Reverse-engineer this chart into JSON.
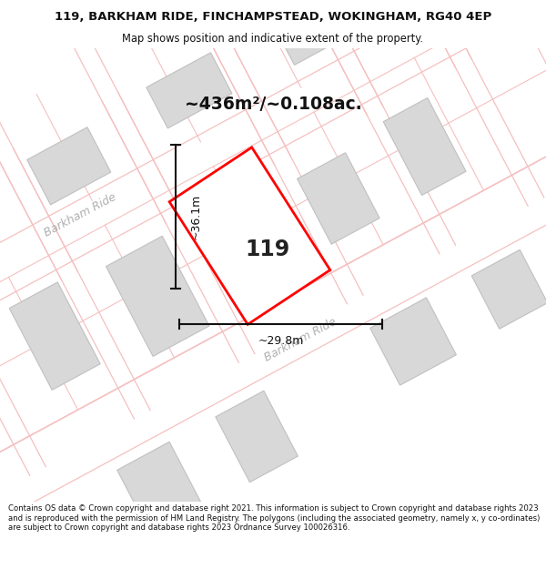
{
  "title_line1": "119, BARKHAM RIDE, FINCHAMPSTEAD, WOKINGHAM, RG40 4EP",
  "title_line2": "Map shows position and indicative extent of the property.",
  "footer": "Contains OS data © Crown copyright and database right 2021. This information is subject to Crown copyright and database rights 2023 and is reproduced with the permission of HM Land Registry. The polygons (including the associated geometry, namely x, y co-ordinates) are subject to Crown copyright and database rights 2023 Ordnance Survey 100026316.",
  "area_text": "~436m²/~0.108ac.",
  "property_number": "119",
  "dim_vertical": "~36.1m",
  "dim_horizontal": "~29.8m",
  "road_label_upper": "Barkham Ride",
  "road_label_lower": "Barkham Ride",
  "bg_color": "#ffffff",
  "map_bg": "#ffffff",
  "property_edge_color": "#ff0000",
  "building_fill": "#d8d8d8",
  "building_edge": "#c0c0c0",
  "road_line_color": "#f5c0c0",
  "dim_color": "#111111",
  "title_color": "#111111",
  "footer_color": "#111111",
  "road_text_color": "#b0b0b0",
  "title_bg": "#f0f0f0",
  "footer_bg": "#f0f0f0"
}
